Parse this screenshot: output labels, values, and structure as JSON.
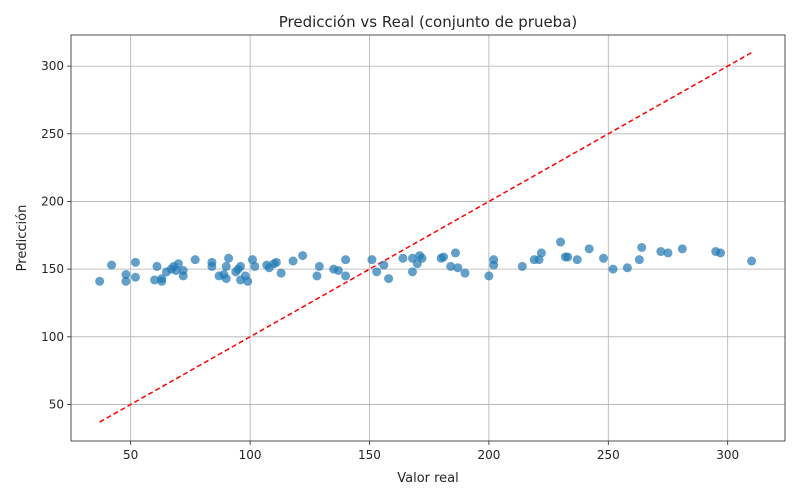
{
  "chart_data": {
    "type": "scatter",
    "title": "Predicción vs Real (conjunto de prueba)",
    "xlabel": "Valor real",
    "ylabel": "Predicción",
    "xlim": [
      25,
      324
    ],
    "ylim": [
      23,
      323
    ],
    "xticks": [
      50,
      100,
      150,
      200,
      250,
      300
    ],
    "yticks": [
      50,
      100,
      150,
      200,
      250,
      300
    ],
    "grid": true,
    "point_color": "#1f77b4",
    "reference_line": {
      "from": [
        37,
        37
      ],
      "to": [
        310,
        310
      ],
      "color": "#ff0000",
      "style": "dashed"
    },
    "points": [
      [
        37,
        141
      ],
      [
        42,
        153
      ],
      [
        48,
        141
      ],
      [
        48,
        146
      ],
      [
        52,
        155
      ],
      [
        52,
        144
      ],
      [
        60,
        142
      ],
      [
        61,
        152
      ],
      [
        63,
        141
      ],
      [
        63,
        143
      ],
      [
        65,
        148
      ],
      [
        67,
        150
      ],
      [
        68,
        152
      ],
      [
        69,
        149
      ],
      [
        70,
        154
      ],
      [
        72,
        145
      ],
      [
        72,
        149
      ],
      [
        77,
        157
      ],
      [
        84,
        152
      ],
      [
        84,
        155
      ],
      [
        87,
        145
      ],
      [
        89,
        146
      ],
      [
        90,
        143
      ],
      [
        90,
        152
      ],
      [
        91,
        158
      ],
      [
        94,
        148
      ],
      [
        95,
        150
      ],
      [
        96,
        152
      ],
      [
        96,
        142
      ],
      [
        98,
        145
      ],
      [
        99,
        141
      ],
      [
        101,
        157
      ],
      [
        102,
        152
      ],
      [
        107,
        153
      ],
      [
        108,
        151
      ],
      [
        110,
        154
      ],
      [
        111,
        155
      ],
      [
        113,
        147
      ],
      [
        118,
        156
      ],
      [
        122,
        160
      ],
      [
        128,
        145
      ],
      [
        129,
        152
      ],
      [
        135,
        150
      ],
      [
        137,
        149
      ],
      [
        140,
        157
      ],
      [
        140,
        145
      ],
      [
        151,
        157
      ],
      [
        153,
        148
      ],
      [
        156,
        153
      ],
      [
        158,
        143
      ],
      [
        164,
        158
      ],
      [
        168,
        148
      ],
      [
        168,
        158
      ],
      [
        170,
        154
      ],
      [
        171,
        160
      ],
      [
        172,
        158
      ],
      [
        180,
        158
      ],
      [
        181,
        159
      ],
      [
        184,
        152
      ],
      [
        186,
        162
      ],
      [
        187,
        151
      ],
      [
        190,
        147
      ],
      [
        200,
        145
      ],
      [
        202,
        157
      ],
      [
        202,
        153
      ],
      [
        214,
        152
      ],
      [
        219,
        157
      ],
      [
        221,
        157
      ],
      [
        222,
        162
      ],
      [
        230,
        170
      ],
      [
        232,
        159
      ],
      [
        233,
        159
      ],
      [
        237,
        157
      ],
      [
        242,
        165
      ],
      [
        248,
        158
      ],
      [
        252,
        150
      ],
      [
        258,
        151
      ],
      [
        263,
        157
      ],
      [
        264,
        166
      ],
      [
        272,
        163
      ],
      [
        275,
        162
      ],
      [
        281,
        165
      ],
      [
        295,
        163
      ],
      [
        297,
        162
      ],
      [
        310,
        156
      ]
    ]
  }
}
